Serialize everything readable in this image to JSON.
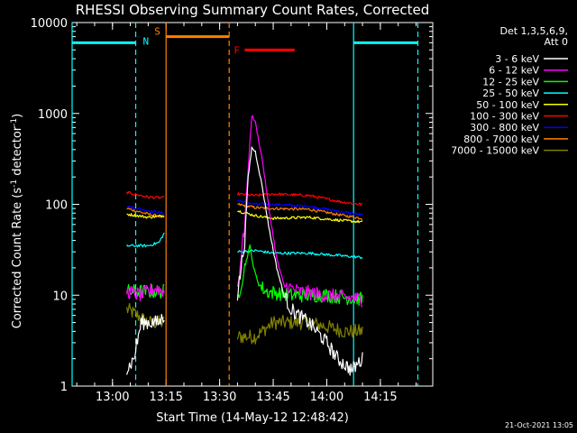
{
  "chart_data": {
    "type": "line",
    "title": "RHESSI Observing Summary Count Rates, Corrected",
    "xlabel": "Start Time (14-May-12 12:48:42)",
    "ylabel_main": "Corrected Count Rate (s",
    "ylabel_sup1": "-1",
    "ylabel_mid": " detector",
    "ylabel_sup2": "-1",
    "ylabel_end": ")",
    "footer": "21-Oct-2021 13:05",
    "yscale": "log",
    "ylim": [
      1,
      10000
    ],
    "xlim_minutes": [
      "12:48:42",
      "14:29:40"
    ],
    "x_ticks": [
      "13:00",
      "13:15",
      "13:30",
      "13:45",
      "14:00",
      "14:15"
    ],
    "y_ticks": [
      "1",
      "10",
      "100",
      "1000",
      "10000"
    ],
    "legend": {
      "header": [
        "Det 1,3,5,6,9,",
        "Att 0"
      ],
      "position": "top-right",
      "entries": [
        {
          "label": "3 - 6 keV",
          "color": "#ffffff"
        },
        {
          "label": "6 - 12 keV",
          "color": "#ff00ff"
        },
        {
          "label": "12 - 25 keV",
          "color": "#00ff00"
        },
        {
          "label": "25 - 50 keV",
          "color": "#00ffff"
        },
        {
          "label": "50 - 100 keV",
          "color": "#ffff00"
        },
        {
          "label": "100 - 300 keV",
          "color": "#ff0000"
        },
        {
          "label": "300 - 800 keV",
          "color": "#0000ff"
        },
        {
          "label": "800 - 7000 keV",
          "color": "#ff8000"
        },
        {
          "label": "7000 - 15000 keV",
          "color": "#808000"
        }
      ]
    },
    "flags": {
      "N": {
        "label": "N",
        "color": "#00ffff",
        "level": 6000,
        "intervals": [
          [
            "12:48:42",
            "13:06:30"
          ],
          [
            "14:07:30",
            "14:25:30"
          ]
        ],
        "dashed_markers": [
          "13:06:30",
          "14:25:30"
        ],
        "solid_markers": [
          "12:48:42",
          "14:07:30"
        ]
      },
      "S": {
        "label": "S",
        "color": "#ff8000",
        "level": 7000,
        "interval": [
          "13:15:00",
          "13:32:40"
        ],
        "solid_markers": [
          "13:15:00"
        ],
        "dashed_markers": [
          "13:32:40"
        ]
      },
      "F": {
        "label": "F",
        "color": "#ff0000",
        "level": 5000,
        "interval": [
          "13:37:00",
          "13:51:00"
        ]
      }
    },
    "series": [
      {
        "name": "3 - 6 keV",
        "color": "#ffffff",
        "segments": [
          [
            [
              "13:04:00",
              1.5
            ],
            [
              "13:06:00",
              2
            ],
            [
              "13:08:00",
              5
            ],
            [
              "13:10:00",
              5
            ],
            [
              "13:13:00",
              5
            ],
            [
              "13:14:30",
              6
            ]
          ],
          [
            [
              "13:35:00",
              10
            ],
            [
              "13:37:00",
              40
            ],
            [
              "13:38:00",
              200
            ],
            [
              "13:39:00",
              420
            ],
            [
              "13:40:00",
              380
            ],
            [
              "13:42:00",
              150
            ],
            [
              "13:44:00",
              50
            ],
            [
              "13:46:00",
              20
            ],
            [
              "13:48:00",
              10
            ],
            [
              "13:50:00",
              7
            ],
            [
              "13:52:00",
              6
            ],
            [
              "13:55:00",
              5
            ],
            [
              "14:00:00",
              3
            ],
            [
              "14:03:00",
              2
            ],
            [
              "14:07:00",
              1.5
            ],
            [
              "14:10:00",
              2
            ]
          ]
        ]
      },
      {
        "name": "6 - 12 keV",
        "color": "#ff00ff",
        "segments": [
          [
            [
              "13:04:00",
              11
            ],
            [
              "13:08:00",
              10
            ],
            [
              "13:12:00",
              12
            ],
            [
              "13:14:30",
              11
            ]
          ],
          [
            [
              "13:35:00",
              12
            ],
            [
              "13:37:00",
              60
            ],
            [
              "13:38:30",
              500
            ],
            [
              "13:39:00",
              950
            ],
            [
              "13:40:00",
              800
            ],
            [
              "13:42:00",
              300
            ],
            [
              "13:44:00",
              80
            ],
            [
              "13:46:00",
              25
            ],
            [
              "13:48:00",
              13
            ],
            [
              "13:52:00",
              11
            ],
            [
              "14:00:00",
              10
            ],
            [
              "14:10:00",
              9
            ]
          ]
        ]
      },
      {
        "name": "12 - 25 keV",
        "color": "#00ff00",
        "segments": [
          [
            [
              "13:04:00",
              11
            ],
            [
              "13:14:30",
              11
            ]
          ],
          [
            [
              "13:35:00",
              9
            ],
            [
              "13:37:00",
              20
            ],
            [
              "13:38:30",
              35
            ],
            [
              "13:39:30",
              20
            ],
            [
              "13:41:00",
              13
            ],
            [
              "13:43:00",
              11
            ],
            [
              "13:50:00",
              10
            ],
            [
              "14:00:00",
              10
            ],
            [
              "14:10:00",
              9
            ]
          ]
        ]
      },
      {
        "name": "25 - 50 keV",
        "color": "#00ffff",
        "segments": [
          [
            [
              "13:04:00",
              35
            ],
            [
              "13:10:00",
              35
            ],
            [
              "13:13:00",
              38
            ],
            [
              "13:14:30",
              48
            ]
          ],
          [
            [
              "13:35:00",
              30
            ],
            [
              "13:40:00",
              31
            ],
            [
              "13:45:00",
              29
            ],
            [
              "13:55:00",
              29
            ],
            [
              "14:05:00",
              27
            ],
            [
              "14:10:00",
              26
            ]
          ]
        ]
      },
      {
        "name": "50 - 100 keV",
        "color": "#ffff00",
        "segments": [
          [
            [
              "13:04:00",
              78
            ],
            [
              "13:10:00",
              72
            ],
            [
              "13:14:30",
              75
            ]
          ],
          [
            [
              "13:35:00",
              85
            ],
            [
              "13:40:00",
              75
            ],
            [
              "13:45:00",
              70
            ],
            [
              "13:55:00",
              72
            ],
            [
              "14:05:00",
              66
            ],
            [
              "14:10:00",
              64
            ]
          ]
        ]
      },
      {
        "name": "100 - 300 keV",
        "color": "#ff0000",
        "segments": [
          [
            [
              "13:04:00",
              135
            ],
            [
              "13:10:00",
              120
            ],
            [
              "13:14:30",
              118
            ]
          ],
          [
            [
              "13:35:00",
              130
            ],
            [
              "13:40:00",
              125
            ],
            [
              "13:45:00",
              130
            ],
            [
              "13:55:00",
              125
            ],
            [
              "14:05:00",
              105
            ],
            [
              "14:10:00",
              100
            ]
          ]
        ]
      },
      {
        "name": "300 - 800 keV",
        "color": "#0000ff",
        "segments": [
          [
            [
              "13:04:00",
              95
            ],
            [
              "13:10:00",
              85
            ],
            [
              "13:14:30",
              80
            ]
          ],
          [
            [
              "13:35:00",
              110
            ],
            [
              "13:40:00",
              100
            ],
            [
              "13:45:00",
              100
            ],
            [
              "13:55:00",
              95
            ],
            [
              "14:05:00",
              82
            ],
            [
              "14:10:00",
              76
            ]
          ]
        ]
      },
      {
        "name": "800 - 7000 keV",
        "color": "#ff8000",
        "segments": [
          [
            [
              "13:04:00",
              90
            ],
            [
              "13:10:00",
              78
            ],
            [
              "13:14:30",
              72
            ]
          ],
          [
            [
              "13:35:00",
              100
            ],
            [
              "13:40:00",
              92
            ],
            [
              "13:45:00",
              90
            ],
            [
              "13:55:00",
              88
            ],
            [
              "14:05:00",
              75
            ],
            [
              "14:10:00",
              70
            ]
          ]
        ]
      },
      {
        "name": "7000 - 15000 keV",
        "color": "#808000",
        "segments": [
          [
            [
              "13:04:00",
              7
            ],
            [
              "13:07:00",
              6
            ],
            [
              "13:10:00",
              5
            ],
            [
              "13:13:00",
              5
            ],
            [
              "13:14:30",
              5
            ]
          ],
          [
            [
              "13:35:00",
              3.5
            ],
            [
              "13:40:00",
              3.5
            ],
            [
              "13:45:00",
              5
            ],
            [
              "13:50:00",
              5
            ],
            [
              "13:55:00",
              5
            ],
            [
              "14:00:00",
              4.5
            ],
            [
              "14:05:00",
              4
            ],
            [
              "14:10:00",
              4
            ]
          ]
        ]
      }
    ]
  }
}
